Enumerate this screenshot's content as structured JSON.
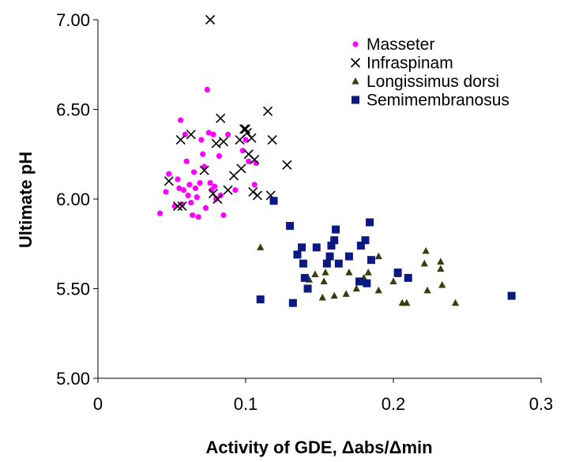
{
  "chart_data": {
    "type": "scatter",
    "title": "",
    "xlabel": "Activity of GDE, Δabs/Δmin",
    "ylabel": "Ultimate pH",
    "xlim": [
      0,
      0.3
    ],
    "ylim": [
      5.0,
      7.0
    ],
    "x_ticks": [
      0,
      0.1,
      0.2,
      0.3
    ],
    "x_tick_labels": [
      "0",
      "0.1",
      "0.2",
      "0.3"
    ],
    "y_ticks": [
      5.0,
      5.5,
      6.0,
      6.5,
      7.0
    ],
    "y_tick_labels": [
      "5.00",
      "5.50",
      "6.00",
      "6.50",
      "7.00"
    ],
    "grid": false,
    "legend_position": "top-right",
    "series": [
      {
        "name": "Masseter",
        "marker": "circle",
        "color": "#ff00ff",
        "points": [
          [
            0.042,
            5.92
          ],
          [
            0.046,
            6.04
          ],
          [
            0.048,
            6.14
          ],
          [
            0.052,
            5.96
          ],
          [
            0.054,
            6.11
          ],
          [
            0.055,
            6.06
          ],
          [
            0.056,
            6.44
          ],
          [
            0.057,
            5.97
          ],
          [
            0.058,
            6.05
          ],
          [
            0.059,
            6.36
          ],
          [
            0.06,
            6.21
          ],
          [
            0.061,
            6.02
          ],
          [
            0.062,
            6.08
          ],
          [
            0.063,
            5.98
          ],
          [
            0.064,
            5.91
          ],
          [
            0.065,
            6.15
          ],
          [
            0.066,
            6.06
          ],
          [
            0.067,
            6.01
          ],
          [
            0.068,
            5.9
          ],
          [
            0.069,
            6.09
          ],
          [
            0.07,
            6.33
          ],
          [
            0.071,
            6.25
          ],
          [
            0.072,
            6.18
          ],
          [
            0.073,
            5.95
          ],
          [
            0.074,
            6.61
          ],
          [
            0.075,
            6.37
          ],
          [
            0.076,
            6.09
          ],
          [
            0.077,
            6.05
          ],
          [
            0.078,
            6.36
          ],
          [
            0.079,
            6.07
          ],
          [
            0.08,
            6.0
          ],
          [
            0.082,
            6.24
          ],
          [
            0.083,
            6.02
          ],
          [
            0.085,
            5.91
          ],
          [
            0.088,
            6.36
          ],
          [
            0.093,
            6.05
          ],
          [
            0.098,
            6.27
          ],
          [
            0.1,
            6.33
          ],
          [
            0.102,
            6.21
          ],
          [
            0.106,
            6.08
          ],
          [
            0.107,
            6.2
          ]
        ]
      },
      {
        "name": "Infraspinam",
        "marker": "x",
        "color": "#000000",
        "points": [
          [
            0.048,
            6.1
          ],
          [
            0.054,
            5.96
          ],
          [
            0.056,
            6.33
          ],
          [
            0.057,
            5.96
          ],
          [
            0.063,
            6.36
          ],
          [
            0.072,
            6.16
          ],
          [
            0.076,
            7.0
          ],
          [
            0.078,
            6.03
          ],
          [
            0.08,
            6.31
          ],
          [
            0.081,
            6.0
          ],
          [
            0.083,
            6.45
          ],
          [
            0.085,
            6.32
          ],
          [
            0.088,
            6.05
          ],
          [
            0.092,
            6.13
          ],
          [
            0.096,
            6.33
          ],
          [
            0.097,
            6.17
          ],
          [
            0.099,
            6.39
          ],
          [
            0.1,
            6.39
          ],
          [
            0.101,
            6.37
          ],
          [
            0.102,
            6.25
          ],
          [
            0.104,
            6.34
          ],
          [
            0.105,
            6.04
          ],
          [
            0.106,
            6.22
          ],
          [
            0.108,
            6.02
          ],
          [
            0.115,
            6.49
          ],
          [
            0.117,
            6.02
          ],
          [
            0.118,
            6.33
          ],
          [
            0.128,
            6.19
          ]
        ]
      },
      {
        "name": "Longissimus dorsi",
        "marker": "triangle",
        "color": "#3b3b0e",
        "points": [
          [
            0.11,
            5.73
          ],
          [
            0.143,
            5.55
          ],
          [
            0.147,
            5.58
          ],
          [
            0.152,
            5.45
          ],
          [
            0.153,
            5.54
          ],
          [
            0.154,
            5.59
          ],
          [
            0.16,
            5.46
          ],
          [
            0.168,
            5.47
          ],
          [
            0.17,
            5.59
          ],
          [
            0.175,
            5.5
          ],
          [
            0.18,
            5.56
          ],
          [
            0.183,
            5.59
          ],
          [
            0.19,
            5.49
          ],
          [
            0.19,
            5.68
          ],
          [
            0.2,
            5.54
          ],
          [
            0.203,
            5.58
          ],
          [
            0.206,
            5.42
          ],
          [
            0.209,
            5.42
          ],
          [
            0.221,
            5.64
          ],
          [
            0.222,
            5.71
          ],
          [
            0.223,
            5.49
          ],
          [
            0.232,
            5.65
          ],
          [
            0.232,
            5.61
          ],
          [
            0.233,
            5.52
          ],
          [
            0.242,
            5.42
          ]
        ]
      },
      {
        "name": "Semimembranosus",
        "marker": "square",
        "color": "#0a1a80",
        "points": [
          [
            0.11,
            5.44
          ],
          [
            0.119,
            5.99
          ],
          [
            0.13,
            5.85
          ],
          [
            0.132,
            5.42
          ],
          [
            0.135,
            5.69
          ],
          [
            0.138,
            5.73
          ],
          [
            0.139,
            5.64
          ],
          [
            0.14,
            5.56
          ],
          [
            0.142,
            5.5
          ],
          [
            0.148,
            5.73
          ],
          [
            0.155,
            5.64
          ],
          [
            0.157,
            5.68
          ],
          [
            0.158,
            5.74
          ],
          [
            0.16,
            5.77
          ],
          [
            0.161,
            5.83
          ],
          [
            0.163,
            5.64
          ],
          [
            0.17,
            5.68
          ],
          [
            0.177,
            5.54
          ],
          [
            0.178,
            5.74
          ],
          [
            0.181,
            5.77
          ],
          [
            0.182,
            5.53
          ],
          [
            0.184,
            5.87
          ],
          [
            0.185,
            5.66
          ],
          [
            0.203,
            5.59
          ],
          [
            0.21,
            5.56
          ],
          [
            0.28,
            5.46
          ]
        ]
      }
    ]
  }
}
